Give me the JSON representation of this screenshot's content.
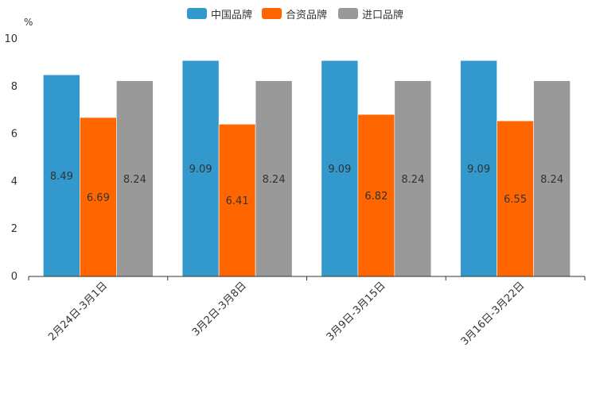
{
  "chart_data": {
    "type": "bar",
    "unit_label": "%",
    "categories": [
      "2月24日-3月1日",
      "3月2日-3月8日",
      "3月9日-3月15日",
      "3月16日-3月22日"
    ],
    "series": [
      {
        "name": "中国品牌",
        "color": "#3398cc",
        "values": [
          8.49,
          9.09,
          9.09,
          9.09
        ],
        "labels": [
          "8.49",
          "9.09",
          "9.09",
          "9.09"
        ]
      },
      {
        "name": "合资品牌",
        "color": "#ff6600",
        "values": [
          6.69,
          6.41,
          6.82,
          6.55
        ],
        "labels": [
          "6.69",
          "6.41",
          "6.82",
          "6.55"
        ]
      },
      {
        "name": "进口品牌",
        "color": "#999999",
        "values": [
          8.24,
          8.24,
          8.24,
          8.24
        ],
        "labels": [
          "8.24",
          "8.24",
          "8.24",
          "8.24"
        ]
      }
    ],
    "ylim": [
      0,
      10
    ],
    "yticks": [
      0,
      2,
      4,
      6,
      8,
      10
    ],
    "ytick_labels": [
      "0",
      "2",
      "4",
      "6",
      "8",
      "10"
    ],
    "legend_position": "top-center",
    "grid": false
  }
}
